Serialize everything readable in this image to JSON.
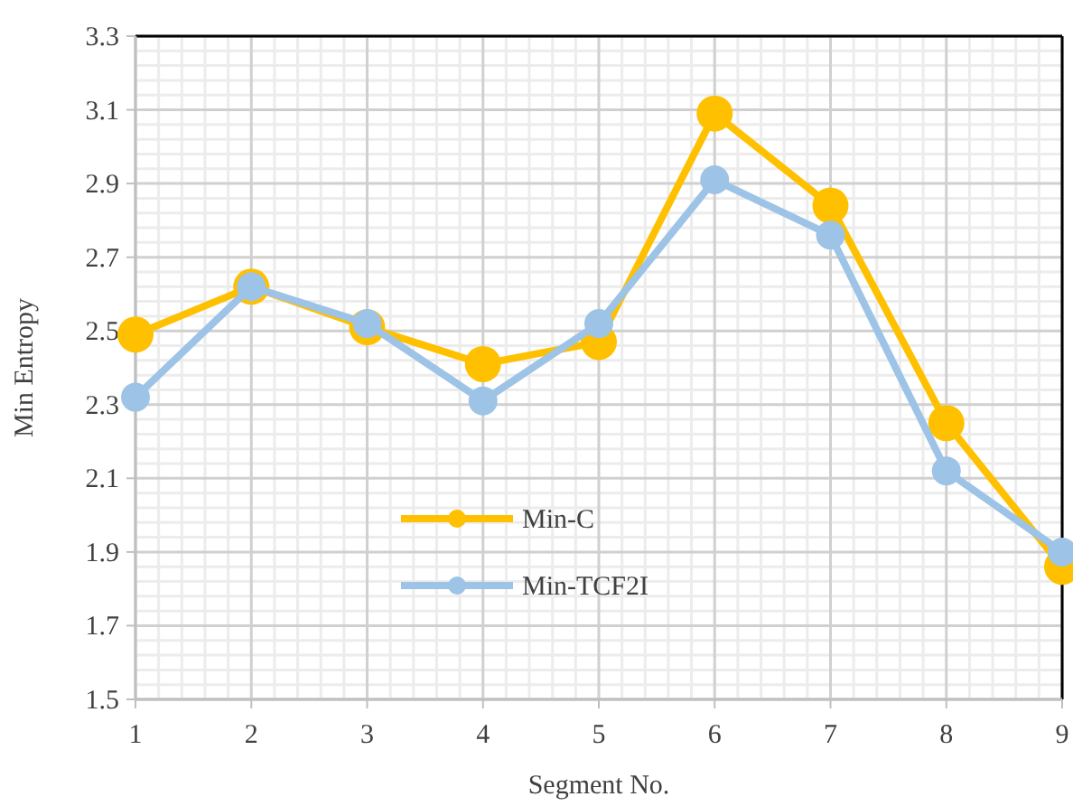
{
  "chart_data": {
    "type": "line",
    "xlabel": "Segment No.",
    "ylabel": "Min Entropy",
    "x": [
      1,
      2,
      3,
      4,
      5,
      6,
      7,
      8,
      9
    ],
    "series": [
      {
        "name": "Min-C",
        "color": "#ffc000",
        "values": [
          2.49,
          2.62,
          2.51,
          2.41,
          2.47,
          3.09,
          2.84,
          2.25,
          1.86
        ]
      },
      {
        "name": "Min-TCF2I",
        "color": "#9dc3e6",
        "values": [
          2.32,
          2.62,
          2.52,
          2.31,
          2.52,
          2.91,
          2.76,
          2.12,
          1.9
        ]
      }
    ],
    "xlim": [
      1,
      9
    ],
    "xticks": [
      1,
      2,
      3,
      4,
      5,
      6,
      7,
      8,
      9
    ],
    "ylim": [
      1.5,
      3.3
    ],
    "yticks": [
      1.5,
      1.7,
      1.9,
      2.1,
      2.3,
      2.5,
      2.7,
      2.9,
      3.1,
      3.3
    ],
    "grid": true,
    "legend": "bottom left",
    "marker": "circle",
    "line_style": "solid"
  }
}
